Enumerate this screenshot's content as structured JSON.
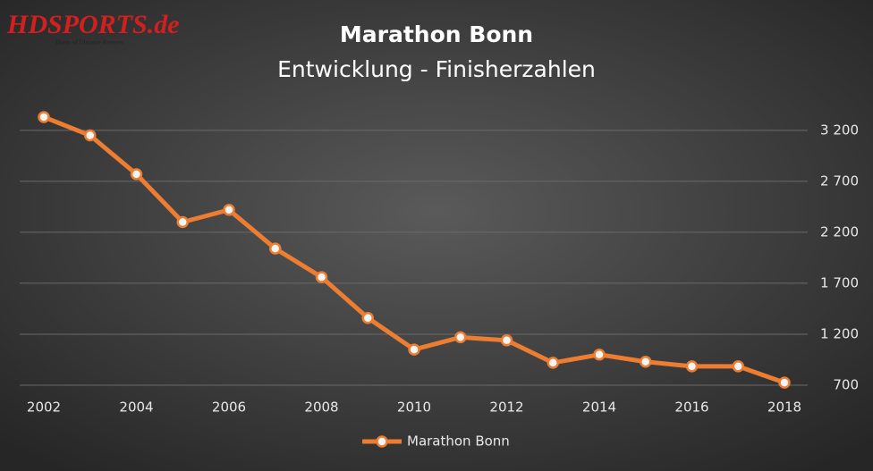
{
  "logo": {
    "text": "HDSPORTS.de",
    "tagline": "Home of Distance Runners"
  },
  "chart_data": {
    "type": "line",
    "title": "Marathon Bonn",
    "subtitle": "Entwicklung - Finisherzahlen",
    "x": [
      2002,
      2003,
      2004,
      2005,
      2006,
      2007,
      2008,
      2009,
      2010,
      2011,
      2012,
      2013,
      2014,
      2015,
      2016,
      2017,
      2018
    ],
    "series": [
      {
        "name": "Marathon Bonn",
        "color": "#ed7d31",
        "values": [
          3330,
          3150,
          2770,
          2300,
          2420,
          2040,
          1760,
          1360,
          1050,
          1170,
          1140,
          920,
          1000,
          930,
          885,
          885,
          725
        ]
      }
    ],
    "xlim": [
      2002,
      2018
    ],
    "xticks": [
      2002,
      2004,
      2006,
      2008,
      2010,
      2012,
      2014,
      2016,
      2018
    ],
    "ylim": [
      700,
      3400
    ],
    "yticks": [
      700,
      {
        "value": 1200,
        "label": "1 200"
      },
      {
        "value": 1700,
        "label": "1 700"
      },
      {
        "value": 2200,
        "label": "2 200"
      },
      {
        "value": 2700,
        "label": "2 700"
      },
      {
        "value": 3200,
        "label": "3 200"
      }
    ],
    "grid": true,
    "legend": "bottom"
  }
}
